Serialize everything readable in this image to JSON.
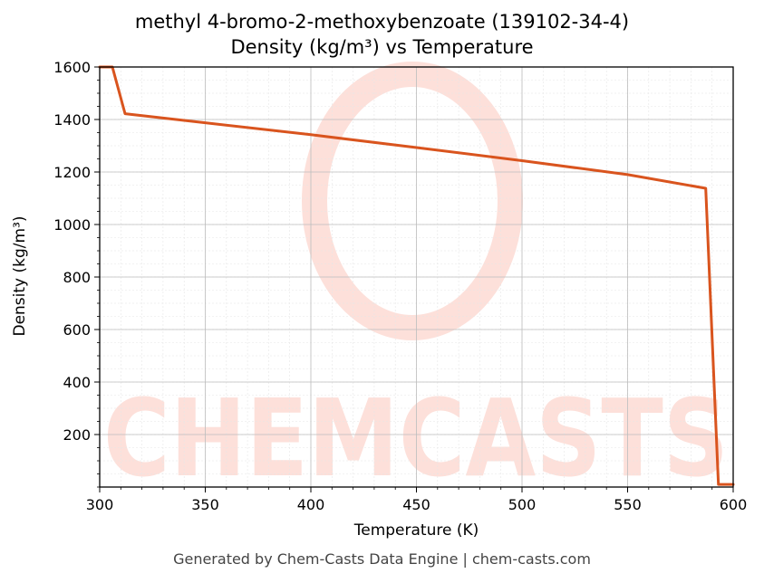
{
  "title": {
    "line1": "methyl 4-bromo-2-methoxybenzoate (139102-34-4)",
    "line2": "Density (kg/m³) vs Temperature"
  },
  "footer": "Generated by Chem-Casts Data Engine | chem-casts.com",
  "watermark": "CHEMCASTS",
  "chart_data": {
    "type": "line",
    "title": "methyl 4-bromo-2-methoxybenzoate (139102-34-4) Density (kg/m³) vs Temperature",
    "xlabel": "Temperature (K)",
    "ylabel": "Density (kg/m³)",
    "xlim": [
      300,
      600
    ],
    "ylim": [
      0,
      1600
    ],
    "xticks": [
      300,
      350,
      400,
      450,
      500,
      550,
      600
    ],
    "yticks": [
      200,
      400,
      600,
      800,
      1000,
      1200,
      1400,
      1600
    ],
    "grid": true,
    "line_color": "#d9541e",
    "series": [
      {
        "x": [
          300,
          306,
          312,
          400,
          450,
          500,
          550,
          587,
          593,
          600
        ],
        "y": [
          1600,
          1600,
          1422,
          1342,
          1293,
          1243,
          1190,
          1138,
          10,
          10
        ]
      }
    ]
  }
}
